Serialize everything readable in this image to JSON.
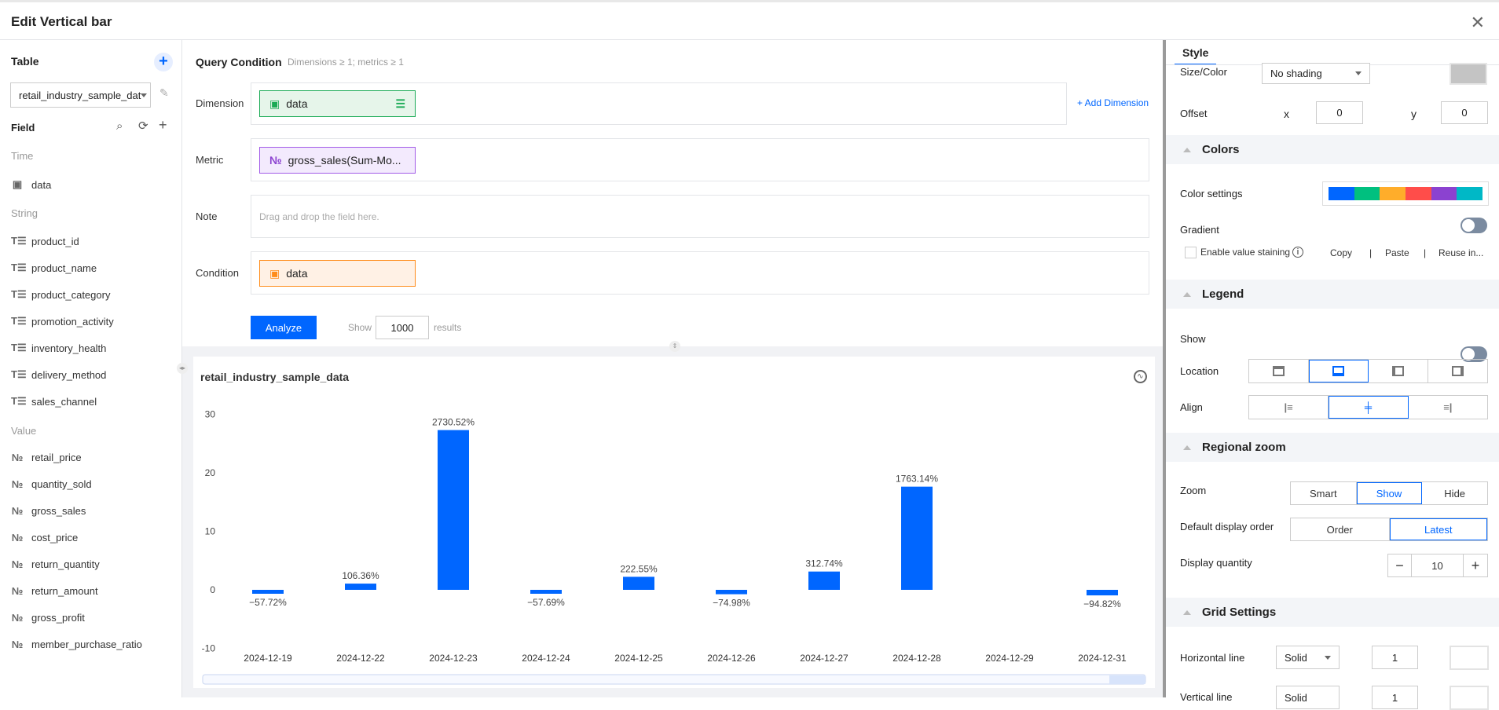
{
  "header": {
    "title": "Edit Vertical bar"
  },
  "sidebar": {
    "table_label": "Table",
    "table_select": "retail_industry_sample_dat",
    "field_label": "Field",
    "groups": {
      "time": "Time",
      "string": "String",
      "value": "Value"
    },
    "time_fields": [
      "data"
    ],
    "string_fields": [
      "product_id",
      "product_name",
      "product_category",
      "promotion_activity",
      "inventory_health",
      "delivery_method",
      "sales_channel"
    ],
    "value_fields": [
      "retail_price",
      "quantity_sold",
      "gross_sales",
      "cost_price",
      "return_quantity",
      "return_amount",
      "gross_profit",
      "member_purchase_ratio"
    ]
  },
  "query": {
    "title": "Query Condition",
    "hint": "Dimensions ≥ 1; metrics ≥ 1",
    "dimension_label": "Dimension",
    "dimension_chip": "data",
    "add_dimension": "+ Add Dimension",
    "metric_label": "Metric",
    "metric_chip": "gross_sales(Sum-Mo...",
    "note_label": "Note",
    "note_placeholder": "Drag and drop the field here.",
    "condition_label": "Condition",
    "condition_chip": "data",
    "analyze": "Analyze",
    "show": "Show",
    "results_count": "1000",
    "results": "results"
  },
  "chart_data": {
    "type": "bar",
    "title": "retail_industry_sample_data",
    "categories": [
      "2024-12-19",
      "2024-12-22",
      "2024-12-23",
      "2024-12-24",
      "2024-12-25",
      "2024-12-26",
      "2024-12-27",
      "2024-12-28",
      "2024-12-29",
      "2024-12-31"
    ],
    "values": [
      -0.5772,
      1.0636,
      27.3052,
      -0.5769,
      2.2255,
      -0.7498,
      3.1274,
      17.6314,
      null,
      -0.9482
    ],
    "labels": [
      "−57.72%",
      "106.36%",
      "2730.52%",
      "−57.69%",
      "222.55%",
      "−74.98%",
      "312.74%",
      "1763.14%",
      "",
      "−94.82%"
    ],
    "yticks": [
      "30",
      "20",
      "10",
      "0",
      "-10"
    ],
    "ylim": [
      -10,
      30
    ],
    "grid": false,
    "color": "#0066ff"
  },
  "style": {
    "tab": "Style",
    "size_color_label": "Size/Color",
    "size_color_value": "No shading",
    "offset_label": "Offset",
    "x_label": "x",
    "x_value": "0",
    "y_label": "y",
    "y_value": "0",
    "colors_title": "Colors",
    "color_settings_label": "Color settings",
    "palette": [
      "#0066ff",
      "#00c07f",
      "#ffad2a",
      "#ff4d4a",
      "#8b42d0",
      "#00b8c6"
    ],
    "gradient_label": "Gradient",
    "gradient_on": false,
    "staining_label": "Enable value staining",
    "copy": "Copy",
    "sep": "|",
    "paste": "Paste",
    "reuse": "Reuse in...",
    "legend_title": "Legend",
    "show_label": "Show",
    "show_on": false,
    "location_label": "Location",
    "location_selected": "bottom",
    "align_label": "Align",
    "align_selected": "center",
    "regional_zoom_title": "Regional zoom",
    "zoom_label": "Zoom",
    "zoom_options": [
      "Smart",
      "Show",
      "Hide"
    ],
    "order_label": "Default display order",
    "order_options": [
      "Order",
      "Latest"
    ],
    "quantity_label": "Display quantity",
    "quantity_value": "10",
    "grid_title": "Grid Settings",
    "hline_label": "Horizontal line",
    "hline_style": "Solid",
    "hline_width": "1",
    "vline_label": "Vertical line",
    "vline_style": "Solid",
    "vline_width": "1"
  }
}
